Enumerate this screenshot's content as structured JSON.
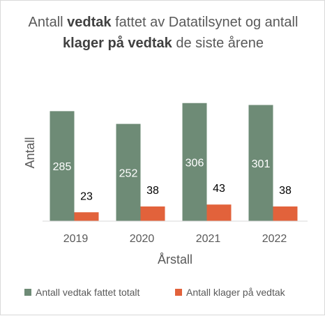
{
  "chart_data": {
    "type": "bar",
    "title_parts": [
      {
        "text": "Antall ",
        "bold": false
      },
      {
        "text": "vedtak",
        "bold": true
      },
      {
        "text": " fattet av Datatilsynet og antall ",
        "bold": false
      },
      {
        "text": "klager på vedtak",
        "bold": true
      },
      {
        "text": " de siste årene",
        "bold": false
      }
    ],
    "xlabel": "Årstall",
    "ylabel": "Antall",
    "categories": [
      "2019",
      "2020",
      "2021",
      "2022"
    ],
    "series": [
      {
        "name": "Antall vedtak fattet totalt",
        "values": [
          285,
          252,
          306,
          301
        ],
        "color": "#6e8b76",
        "label_color": "#ffffff"
      },
      {
        "name": "Antall klager på vedtak",
        "values": [
          23,
          38,
          43,
          38
        ],
        "color": "#e2623b",
        "label_color": "#000000"
      }
    ],
    "ylim": [
      0,
      320
    ],
    "grid": false,
    "legend_position": "bottom"
  }
}
